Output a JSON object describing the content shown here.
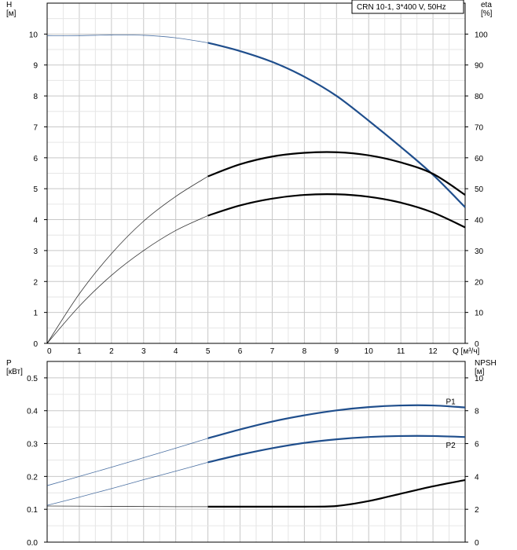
{
  "chart_data": [
    {
      "type": "line",
      "title": "CRN 10-1, 3*400 V, 50Hz",
      "xlabel": "Q [м³/ч]",
      "ylabel": "H\n[м]",
      "y2label": "eta\n[%]",
      "xlim": [
        0,
        13
      ],
      "ylim": [
        0,
        11
      ],
      "y2lim": [
        0,
        110
      ],
      "grid": true,
      "x_ticks": [
        "0",
        "1",
        "2",
        "3",
        "4",
        "5",
        "6",
        "7",
        "8",
        "9",
        "10",
        "11",
        "12"
      ],
      "y_ticks": [
        "0",
        "1",
        "2",
        "3",
        "4",
        "5",
        "6",
        "7",
        "8",
        "9",
        "10"
      ],
      "y2_ticks": [
        "0",
        "10",
        "20",
        "30",
        "40",
        "50",
        "60",
        "70",
        "80",
        "90",
        "100"
      ],
      "series": [
        {
          "axis": "left",
          "color": "#1f4e8c",
          "style": "solid",
          "points": [
            [
              0,
              9.95
            ],
            [
              1,
              9.95
            ],
            [
              2,
              9.97
            ],
            [
              3,
              9.96
            ],
            [
              4,
              9.88
            ],
            [
              5,
              9.72
            ],
            [
              6,
              9.45
            ],
            [
              7,
              9.1
            ],
            [
              8,
              8.62
            ],
            [
              9,
              8.0
            ],
            [
              10,
              7.2
            ],
            [
              11,
              6.35
            ],
            [
              12,
              5.45
            ],
            [
              13,
              4.4
            ]
          ]
        },
        {
          "axis": "right",
          "color": "#000000",
          "style": "solid",
          "points": [
            [
              0,
              0
            ],
            [
              1,
              16
            ],
            [
              2,
              29
            ],
            [
              3,
              39.5
            ],
            [
              4,
              47.5
            ],
            [
              5,
              54
            ],
            [
              6,
              57.9
            ],
            [
              7,
              60.4
            ],
            [
              8,
              61.6
            ],
            [
              9,
              61.8
            ],
            [
              10,
              60.8
            ],
            [
              11,
              58.5
            ],
            [
              12,
              54.8
            ],
            [
              13,
              48
            ]
          ]
        },
        {
          "axis": "right",
          "color": "#000000",
          "style": "solid",
          "points": [
            [
              0,
              0
            ],
            [
              1,
              12
            ],
            [
              2,
              22
            ],
            [
              3,
              30
            ],
            [
              4,
              36.5
            ],
            [
              5,
              41.3
            ],
            [
              6,
              44.6
            ],
            [
              7,
              46.8
            ],
            [
              8,
              48
            ],
            [
              9,
              48.2
            ],
            [
              10,
              47.4
            ],
            [
              11,
              45.5
            ],
            [
              12,
              42.3
            ],
            [
              13,
              37.5
            ]
          ]
        }
      ]
    },
    {
      "type": "line",
      "xlim": [
        0,
        13
      ],
      "ylim": [
        0,
        0.55
      ],
      "y2lim": [
        0,
        11
      ],
      "ylabel": "P\n[кВт]",
      "y2label": "NPSH\n[м]",
      "grid": true,
      "y_ticks": [
        "0.0",
        "0.1",
        "0.2",
        "0.3",
        "0.4",
        "0.5"
      ],
      "y2_ticks": [
        "0",
        "2",
        "4",
        "6",
        "8",
        "10"
      ],
      "series": [
        {
          "name": "P1",
          "axis": "left",
          "color": "#1f4e8c",
          "points": [
            [
              0,
              0.172
            ],
            [
              1,
              0.2
            ],
            [
              2,
              0.228
            ],
            [
              3,
              0.257
            ],
            [
              4,
              0.286
            ],
            [
              5,
              0.316
            ],
            [
              6,
              0.343
            ],
            [
              7,
              0.367
            ],
            [
              8,
              0.386
            ],
            [
              9,
              0.401
            ],
            [
              10,
              0.411
            ],
            [
              11,
              0.416
            ],
            [
              12,
              0.416
            ],
            [
              13,
              0.41
            ]
          ]
        },
        {
          "name": "P2",
          "axis": "left",
          "color": "#1f4e8c",
          "points": [
            [
              0,
              0.112
            ],
            [
              1,
              0.137
            ],
            [
              2,
              0.163
            ],
            [
              3,
              0.19
            ],
            [
              4,
              0.216
            ],
            [
              5,
              0.243
            ],
            [
              6,
              0.266
            ],
            [
              7,
              0.286
            ],
            [
              8,
              0.302
            ],
            [
              9,
              0.313
            ],
            [
              10,
              0.32
            ],
            [
              11,
              0.323
            ],
            [
              12,
              0.323
            ],
            [
              13,
              0.32
            ]
          ]
        },
        {
          "axis": "right",
          "color": "#000000",
          "points": [
            [
              0,
              2.2
            ],
            [
              2,
              2.18
            ],
            [
              4,
              2.16
            ],
            [
              5,
              2.16
            ],
            [
              6,
              2.16
            ],
            [
              7,
              2.16
            ],
            [
              8,
              2.16
            ],
            [
              9,
              2.2
            ],
            [
              10,
              2.5
            ],
            [
              11,
              2.95
            ],
            [
              12,
              3.4
            ],
            [
              13,
              3.78
            ]
          ]
        }
      ]
    }
  ]
}
